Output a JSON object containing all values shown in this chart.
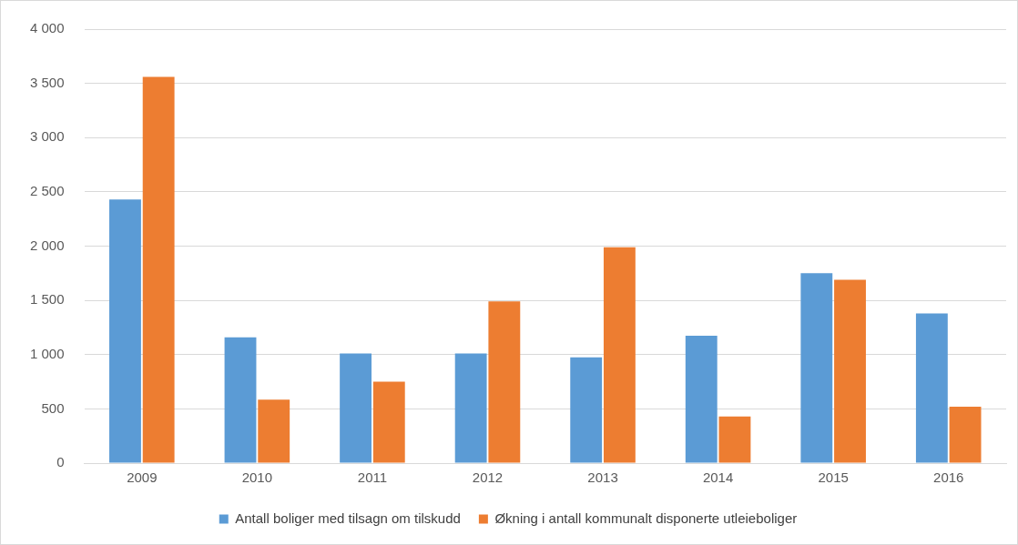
{
  "chart_data": {
    "type": "bar",
    "categories": [
      "2009",
      "2010",
      "2011",
      "2012",
      "2013",
      "2014",
      "2015",
      "2016"
    ],
    "series": [
      {
        "name": "Antall boliger med tilsagn om tilskudd",
        "color": "#5b9bd5",
        "values": [
          2430,
          1160,
          1010,
          1010,
          975,
          1175,
          1750,
          1380
        ]
      },
      {
        "name": "Økning i antall kommunalt disponerte utleieboliger",
        "color": "#ed7d31",
        "values": [
          3560,
          585,
          750,
          1490,
          1990,
          430,
          1690,
          520
        ]
      }
    ],
    "ylim": [
      0,
      4000
    ],
    "yticks": [
      {
        "value": 0,
        "label": "0"
      },
      {
        "value": 500,
        "label": "500"
      },
      {
        "value": 1000,
        "label": "1 000"
      },
      {
        "value": 1500,
        "label": "1 500"
      },
      {
        "value": 2000,
        "label": "2 000"
      },
      {
        "value": 2500,
        "label": "2 500"
      },
      {
        "value": 3000,
        "label": "3 000"
      },
      {
        "value": 3500,
        "label": "3 500"
      },
      {
        "value": 4000,
        "label": "4 000"
      }
    ],
    "grid": "y",
    "legend": "bottom"
  }
}
